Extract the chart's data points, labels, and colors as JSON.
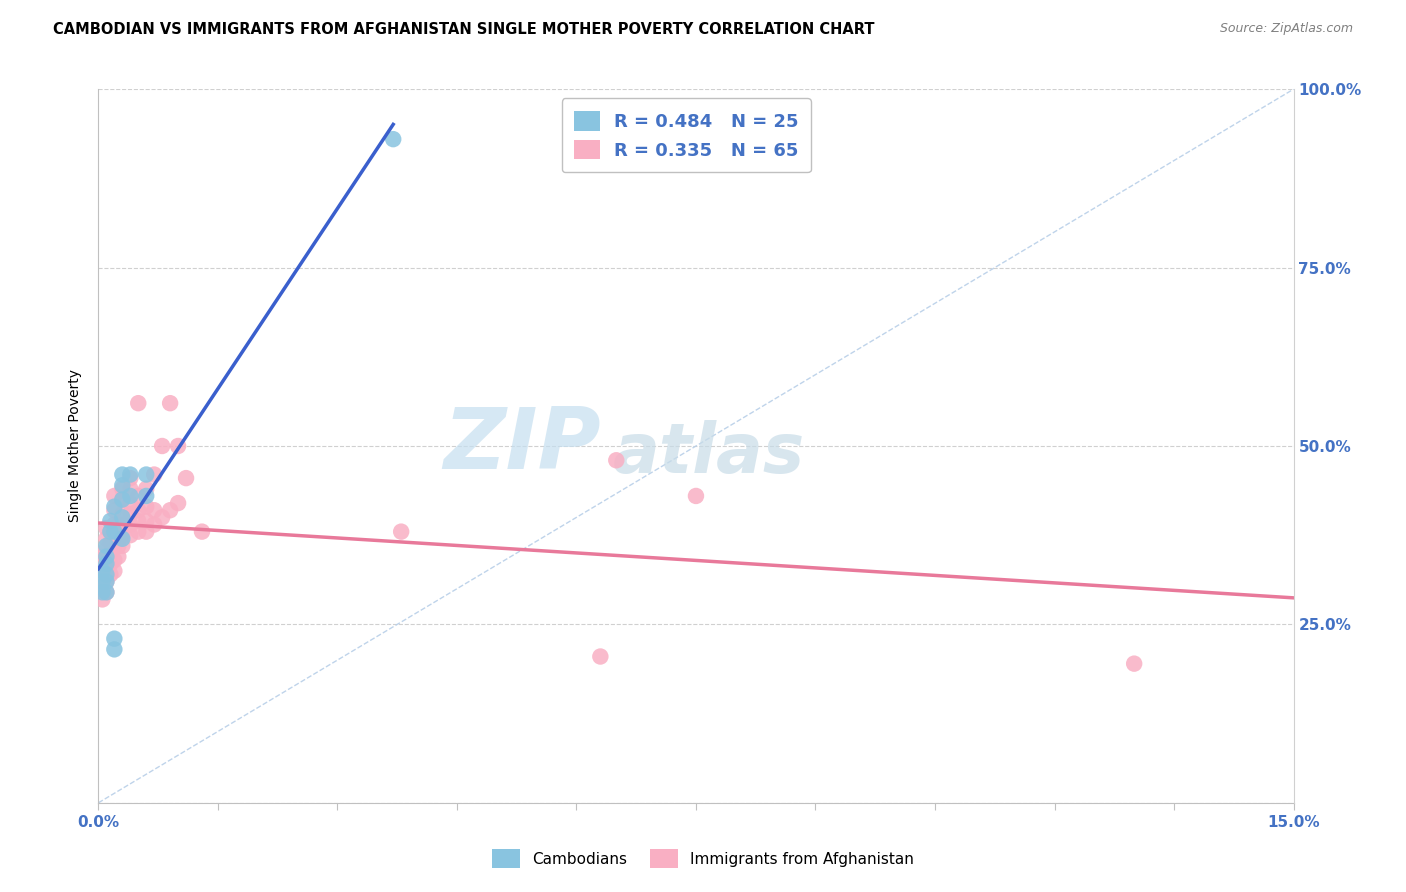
{
  "title": "CAMBODIAN VS IMMIGRANTS FROM AFGHANISTAN SINGLE MOTHER POVERTY CORRELATION CHART",
  "source": "Source: ZipAtlas.com",
  "ylabel_label": "Single Mother Poverty",
  "xlim": [
    0.0,
    0.15
  ],
  "ylim": [
    0.0,
    1.0
  ],
  "xtick_pos": [
    0.0,
    0.015,
    0.03,
    0.045,
    0.06,
    0.075,
    0.09,
    0.105,
    0.12,
    0.135,
    0.15
  ],
  "xtick_labels": [
    "0.0%",
    "",
    "",
    "",
    "",
    "",
    "",
    "",
    "",
    "",
    "15.0%"
  ],
  "ytick_pos": [
    0.0,
    0.25,
    0.5,
    0.75,
    1.0
  ],
  "ytick_right_labels": [
    "",
    "25.0%",
    "50.0%",
    "75.0%",
    "100.0%"
  ],
  "cambodian_color": "#89c4e0",
  "afghan_color": "#f9afc3",
  "line_blue": "#3a5fcd",
  "line_pink": "#e8799a",
  "diag_color": "#b8cfe8",
  "R_cambodian": 0.484,
  "N_cambodian": 25,
  "R_afghan": 0.335,
  "N_afghan": 65,
  "legend_label_cambodian": "Cambodians",
  "legend_label_afghan": "Immigrants from Afghanistan",
  "watermark_zip": "ZIP",
  "watermark_atlas": "atlas",
  "watermark_color_zip": "#c5dff0",
  "watermark_color_atlas": "#c8dce8",
  "cambodian_x": [
    0.0005,
    0.0005,
    0.0005,
    0.001,
    0.001,
    0.001,
    0.001,
    0.001,
    0.001,
    0.0015,
    0.0015,
    0.002,
    0.002,
    0.002,
    0.002,
    0.003,
    0.003,
    0.003,
    0.003,
    0.003,
    0.004,
    0.004,
    0.006,
    0.006,
    0.037
  ],
  "cambodian_y": [
    0.295,
    0.31,
    0.325,
    0.295,
    0.31,
    0.32,
    0.335,
    0.345,
    0.36,
    0.38,
    0.395,
    0.215,
    0.23,
    0.38,
    0.415,
    0.37,
    0.4,
    0.425,
    0.445,
    0.46,
    0.43,
    0.46,
    0.43,
    0.46,
    0.93
  ],
  "afghan_x": [
    0.0005,
    0.0005,
    0.0005,
    0.0005,
    0.0005,
    0.001,
    0.001,
    0.001,
    0.001,
    0.001,
    0.001,
    0.001,
    0.0015,
    0.0015,
    0.0015,
    0.0015,
    0.0015,
    0.002,
    0.002,
    0.002,
    0.002,
    0.002,
    0.002,
    0.002,
    0.0025,
    0.0025,
    0.0025,
    0.0025,
    0.003,
    0.003,
    0.003,
    0.003,
    0.003,
    0.003,
    0.004,
    0.004,
    0.004,
    0.004,
    0.004,
    0.004,
    0.005,
    0.005,
    0.005,
    0.005,
    0.005,
    0.006,
    0.006,
    0.006,
    0.006,
    0.007,
    0.007,
    0.007,
    0.008,
    0.008,
    0.009,
    0.009,
    0.01,
    0.01,
    0.011,
    0.013,
    0.038,
    0.063,
    0.065,
    0.075,
    0.13
  ],
  "afghan_y": [
    0.285,
    0.3,
    0.315,
    0.33,
    0.345,
    0.295,
    0.31,
    0.325,
    0.34,
    0.355,
    0.37,
    0.385,
    0.32,
    0.335,
    0.35,
    0.365,
    0.38,
    0.325,
    0.34,
    0.36,
    0.375,
    0.39,
    0.41,
    0.43,
    0.345,
    0.36,
    0.375,
    0.39,
    0.36,
    0.375,
    0.39,
    0.405,
    0.425,
    0.44,
    0.375,
    0.39,
    0.405,
    0.42,
    0.44,
    0.455,
    0.38,
    0.395,
    0.41,
    0.43,
    0.56,
    0.38,
    0.395,
    0.415,
    0.44,
    0.39,
    0.41,
    0.46,
    0.4,
    0.5,
    0.41,
    0.56,
    0.42,
    0.5,
    0.455,
    0.38,
    0.38,
    0.205,
    0.48,
    0.43,
    0.195
  ]
}
